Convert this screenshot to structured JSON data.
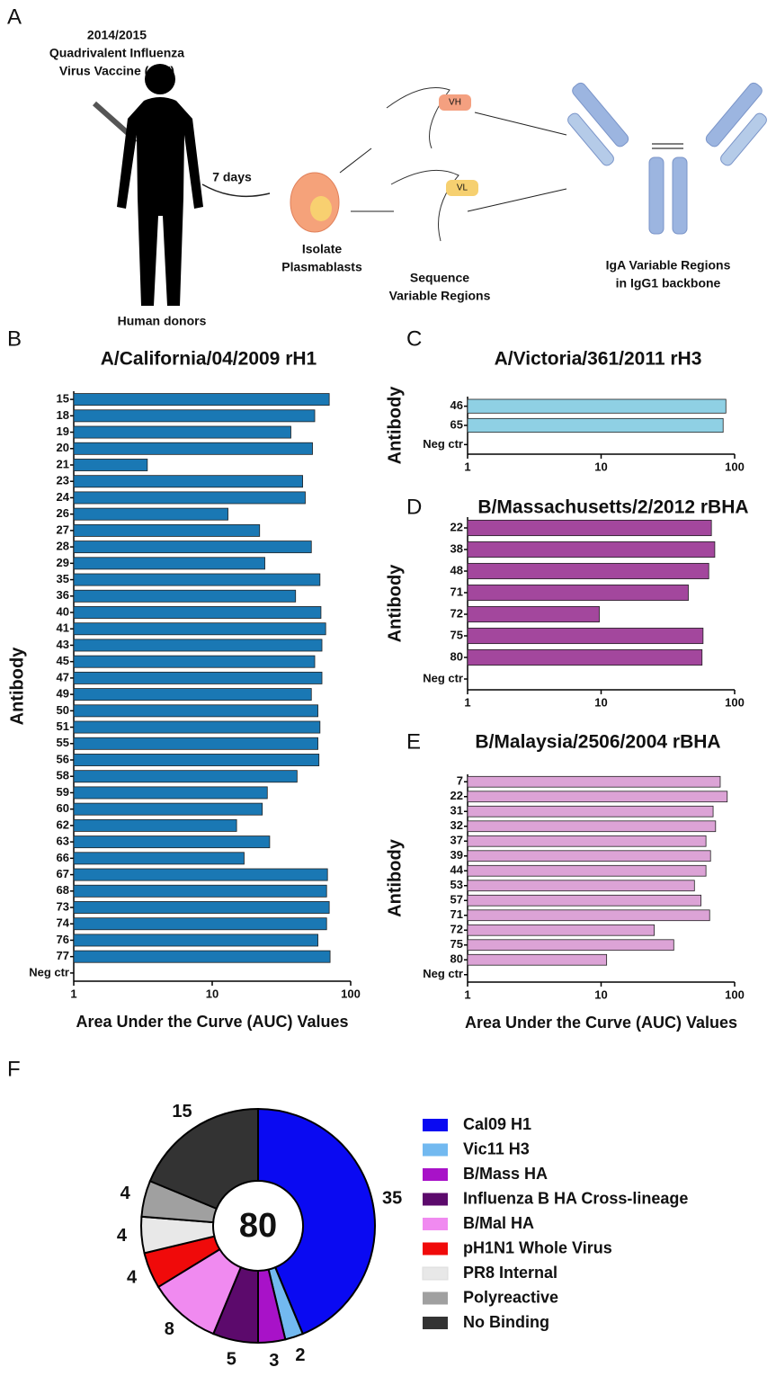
{
  "diagram": {
    "panel": "A",
    "vaccine_lines": [
      "2014/2015",
      "Quadrivalent Influenza",
      "Virus Vaccine (QIV)"
    ],
    "arrow_label": "7 days",
    "donor_label": "Human donors",
    "isolate_lines": [
      "Isolate",
      "Plasmablasts"
    ],
    "sequence_lines": [
      "Sequence",
      "Variable Regions"
    ],
    "antibody_lines": [
      "IgA Variable Regions",
      "in IgG1 backbone"
    ],
    "vh": "VH",
    "vl": "VL"
  },
  "chart_data": [
    {
      "type": "bar",
      "orientation": "horizontal",
      "panel": "B",
      "title": "A/California/04/2009 rH1",
      "ylabel": "Antibody",
      "xlabel": "Area Under the Curve (AUC) Values",
      "log_scale": true,
      "color": "#1a78b4",
      "categories": [
        "15",
        "18",
        "19",
        "20",
        "21",
        "23",
        "24",
        "26",
        "27",
        "28",
        "29",
        "35",
        "36",
        "40",
        "41",
        "43",
        "45",
        "47",
        "49",
        "50",
        "51",
        "55",
        "56",
        "58",
        "59",
        "60",
        "62",
        "63",
        "66",
        "67",
        "68",
        "73",
        "74",
        "76",
        "77",
        "Neg ctr"
      ],
      "values": [
        70,
        55,
        37,
        53,
        3.4,
        45,
        47,
        13,
        22,
        52,
        24,
        60,
        40,
        61,
        66,
        62,
        55,
        62,
        52,
        58,
        60,
        58,
        59,
        41,
        25,
        23,
        15,
        26,
        17,
        68,
        67,
        70,
        67,
        58,
        71,
        null
      ],
      "xlim": [
        1,
        100
      ],
      "xticks": [
        1,
        10,
        100
      ]
    },
    {
      "type": "bar",
      "orientation": "horizontal",
      "panel": "C",
      "title": "A/Victoria/361/2011 rH3",
      "ylabel": "Antibody",
      "log_scale": true,
      "color": "#8fd0e4",
      "categories": [
        "46",
        "65",
        "Neg ctr"
      ],
      "values": [
        86,
        82,
        null
      ],
      "xlim": [
        1,
        100
      ],
      "xticks": [
        1,
        10,
        100
      ]
    },
    {
      "type": "bar",
      "orientation": "horizontal",
      "panel": "D",
      "title": "B/Massachusetts/2/2012 rBHA",
      "ylabel": "Antibody",
      "log_scale": true,
      "color": "#a3479d",
      "categories": [
        "22",
        "38",
        "48",
        "71",
        "72",
        "75",
        "80",
        "Neg ctr"
      ],
      "values": [
        67,
        71,
        64,
        45,
        9.7,
        58,
        57,
        null
      ],
      "xlim": [
        1,
        100
      ],
      "xticks": [
        1,
        10,
        100
      ]
    },
    {
      "type": "bar",
      "orientation": "horizontal",
      "panel": "E",
      "title": "B/Malaysia/2506/2004 rBHA",
      "ylabel": "Antibody",
      "xlabel": "Area Under the Curve (AUC) Values",
      "log_scale": true,
      "color": "#dca3d6",
      "categories": [
        "7",
        "22",
        "31",
        "32",
        "37",
        "39",
        "44",
        "53",
        "57",
        "71",
        "72",
        "75",
        "80",
        "Neg ctr"
      ],
      "values": [
        78,
        88,
        69,
        72,
        61,
        66,
        61,
        50,
        56,
        65,
        25,
        35,
        11,
        null
      ],
      "xlim": [
        1,
        100
      ],
      "xticks": [
        1,
        10,
        100
      ]
    },
    {
      "type": "pie",
      "panel": "F",
      "center_text": "80",
      "categories": [
        "Cal09 H1",
        "Vic11 H3",
        "B/Mass HA",
        "Influenza B HA Cross-lineage",
        "B/Mal HA",
        "pH1N1 Whole Virus",
        "PR8 Internal",
        "Polyreactive",
        "No Binding"
      ],
      "values": [
        35,
        2,
        3,
        5,
        8,
        4,
        4,
        4,
        15
      ],
      "colors": [
        "#0a0af2",
        "#72b9f0",
        "#a812c8",
        "#5c0a6c",
        "#f08af0",
        "#f00a0a",
        "#e8e8e8",
        "#a0a0a0",
        "#333333"
      ]
    }
  ]
}
